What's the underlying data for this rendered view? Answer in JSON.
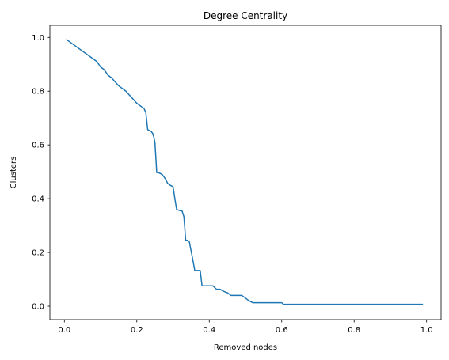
{
  "chart_data": {
    "type": "line",
    "title": "Degree Centrality",
    "xlabel": "Removed nodes",
    "ylabel": "Clusters",
    "xlim": [
      -0.04,
      1.04
    ],
    "ylim": [
      -0.05,
      1.045
    ],
    "xticks": [
      0.0,
      0.2,
      0.4,
      0.6,
      0.8,
      1.0
    ],
    "xtick_labels": [
      "0.0",
      "0.2",
      "0.4",
      "0.6",
      "0.8",
      "1.0"
    ],
    "yticks": [
      0.0,
      0.2,
      0.4,
      0.6,
      0.8,
      1.0
    ],
    "ytick_labels": [
      "0.0",
      "0.2",
      "0.4",
      "0.6",
      "0.8",
      "1.0"
    ],
    "grid": false,
    "line_color": "#1f77b4",
    "series": [
      {
        "x": [
          0.005,
          0.09,
          0.1,
          0.11,
          0.12,
          0.13,
          0.14,
          0.15,
          0.16,
          0.17,
          0.18,
          0.19,
          0.2,
          0.21,
          0.22,
          0.225,
          0.23,
          0.24,
          0.245,
          0.25,
          0.255,
          0.26,
          0.27,
          0.28,
          0.285,
          0.29,
          0.295,
          0.3,
          0.305,
          0.31,
          0.32,
          0.325,
          0.33,
          0.335,
          0.34,
          0.345,
          0.35,
          0.355,
          0.36,
          0.37,
          0.375,
          0.38,
          0.39,
          0.4,
          0.41,
          0.42,
          0.43,
          0.44,
          0.45,
          0.46,
          0.47,
          0.48,
          0.49,
          0.5,
          0.51,
          0.52,
          0.6,
          0.605,
          0.7,
          0.8,
          0.9,
          0.99
        ],
        "y": [
          0.993,
          0.91,
          0.89,
          0.88,
          0.86,
          0.85,
          0.835,
          0.82,
          0.81,
          0.8,
          0.785,
          0.77,
          0.755,
          0.745,
          0.735,
          0.72,
          0.657,
          0.65,
          0.64,
          0.61,
          0.497,
          0.497,
          0.49,
          0.472,
          0.457,
          0.452,
          0.448,
          0.445,
          0.4,
          0.36,
          0.355,
          0.354,
          0.333,
          0.245,
          0.245,
          0.24,
          0.205,
          0.17,
          0.133,
          0.133,
          0.133,
          0.076,
          0.076,
          0.076,
          0.076,
          0.063,
          0.063,
          0.055,
          0.05,
          0.04,
          0.04,
          0.04,
          0.04,
          0.03,
          0.02,
          0.013,
          0.013,
          0.007,
          0.007,
          0.007,
          0.007,
          0.007
        ]
      }
    ]
  }
}
